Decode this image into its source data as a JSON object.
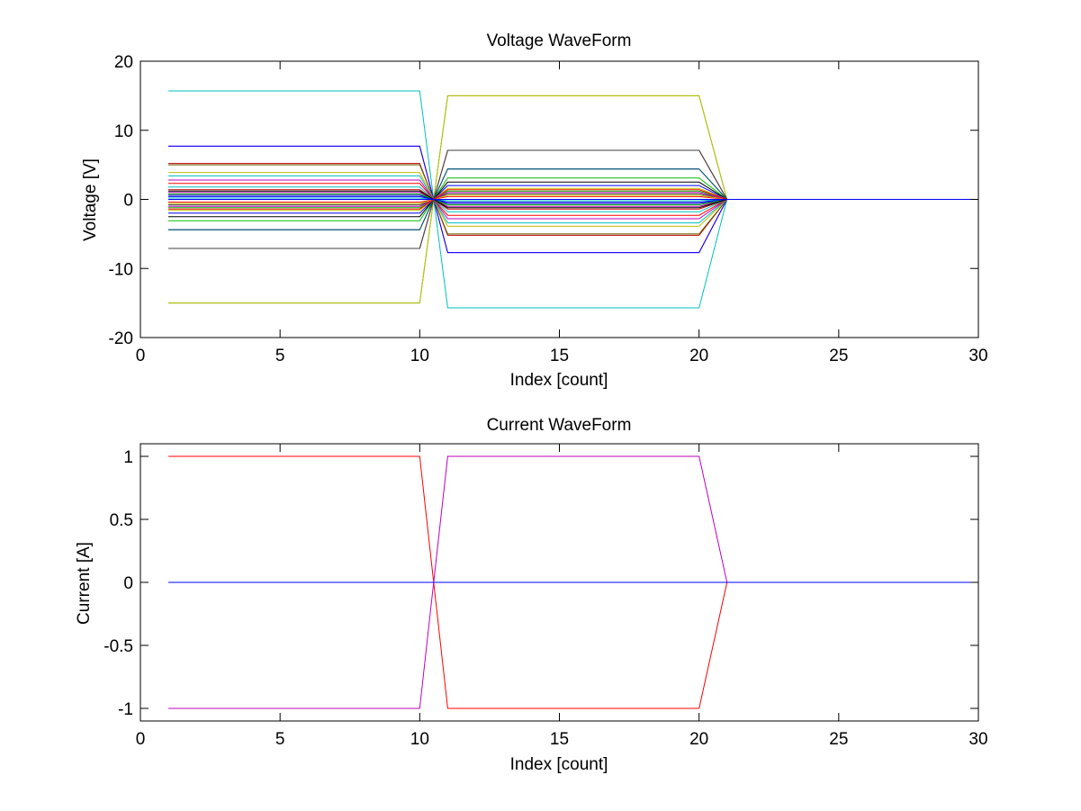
{
  "chart_data": [
    {
      "type": "line",
      "title": "Voltage WaveForm",
      "xlabel": "Index [count]",
      "ylabel": "Voltage [V]",
      "xlim": [
        0,
        30
      ],
      "ylim": [
        -20,
        20
      ],
      "xticks": [
        0,
        5,
        10,
        15,
        20,
        25,
        30
      ],
      "yticks": [
        -20,
        -10,
        0,
        10,
        20
      ],
      "xtick_labels": [
        "0",
        "5",
        "10",
        "15",
        "20",
        "25",
        "30"
      ],
      "ytick_labels": [
        "-20",
        "-10",
        "0",
        "10",
        "20"
      ],
      "grid": false,
      "legend": "none",
      "x_extent": [
        1,
        30
      ],
      "segment_1_x": [
        1,
        10
      ],
      "crossing_x": 10.5,
      "segment_2_x": [
        11,
        20
      ],
      "settle_x": 21,
      "series": [
        {
          "v1": 15.7,
          "v2": -15.7,
          "color": "#00bfbf"
        },
        {
          "v1": -15.0,
          "v2": 15.0,
          "color": "#30b030"
        },
        {
          "v1": -15.0,
          "v2": 15.0,
          "color": "#bfbf00"
        },
        {
          "v1": 7.7,
          "v2": -7.7,
          "color": "#bf00bf"
        },
        {
          "v1": 7.7,
          "v2": -7.7,
          "color": "#0000ff"
        },
        {
          "v1": -7.1,
          "v2": 7.1,
          "color": "#bf0000"
        },
        {
          "v1": -7.1,
          "v2": 7.1,
          "color": "#404040"
        },
        {
          "v1": 5.2,
          "v2": -5.2,
          "color": "#bf0000"
        },
        {
          "v1": 5.0,
          "v2": -5.0,
          "color": "#606000"
        },
        {
          "v1": -4.4,
          "v2": 4.4,
          "color": "#0000bf"
        },
        {
          "v1": -4.4,
          "v2": 4.4,
          "color": "#006060"
        },
        {
          "v1": 3.9,
          "v2": -3.9,
          "color": "#bfbf00"
        },
        {
          "v1": 3.4,
          "v2": -3.4,
          "color": "#00bfbf"
        },
        {
          "v1": -3.1,
          "v2": 3.1,
          "color": "#00bf00"
        },
        {
          "v1": 2.8,
          "v2": -2.8,
          "color": "#bf00bf"
        },
        {
          "v1": -2.5,
          "v2": 2.5,
          "color": "#000000"
        },
        {
          "v1": 2.3,
          "v2": -2.3,
          "color": "#ff0000"
        },
        {
          "v1": -2.0,
          "v2": 2.0,
          "color": "#0000ff"
        },
        {
          "v1": 1.8,
          "v2": -1.8,
          "color": "#00bfbf"
        },
        {
          "v1": -1.6,
          "v2": 1.6,
          "color": "#bfbf00"
        },
        {
          "v1": 1.4,
          "v2": -1.4,
          "color": "#bf0000"
        },
        {
          "v1": -1.2,
          "v2": 1.2,
          "color": "#00bf00"
        },
        {
          "v1": 1.0,
          "v2": -1.0,
          "color": "#bf00bf"
        },
        {
          "v1": -0.8,
          "v2": 0.8,
          "color": "#404040"
        },
        {
          "v1": 0.6,
          "v2": -0.6,
          "color": "#0000bf"
        },
        {
          "v1": -0.4,
          "v2": 0.4,
          "color": "#ff0000"
        },
        {
          "v1": 0.2,
          "v2": -0.2,
          "color": "#00bfbf"
        },
        {
          "v1": -0.6,
          "v2": 0.6,
          "color": "#bfbf00"
        },
        {
          "v1": 0.8,
          "v2": -0.8,
          "color": "#00bf00"
        },
        {
          "v1": -1.0,
          "v2": 1.0,
          "color": "#bf00bf"
        },
        {
          "v1": 1.2,
          "v2": -1.2,
          "color": "#000000"
        },
        {
          "v1": -1.4,
          "v2": 1.4,
          "color": "#ff0000"
        },
        {
          "v1": 0.4,
          "v2": -0.4,
          "color": "#0000ff"
        },
        {
          "v1": 0.0,
          "v2": 0.0,
          "color": "#0000ff"
        }
      ]
    },
    {
      "type": "line",
      "title": "Current WaveForm",
      "xlabel": "Index [count]",
      "ylabel": "Current [A]",
      "xlim": [
        0,
        30
      ],
      "ylim": [
        -1.1,
        1.1
      ],
      "xticks": [
        0,
        5,
        10,
        15,
        20,
        25,
        30
      ],
      "yticks": [
        -1,
        -0.5,
        0,
        0.5,
        1
      ],
      "xtick_labels": [
        "0",
        "5",
        "10",
        "15",
        "20",
        "25",
        "30"
      ],
      "ytick_labels": [
        "-1",
        "-0.5",
        "0",
        "0.5",
        "1"
      ],
      "grid": false,
      "legend": "none",
      "series": [
        {
          "x": [
            1,
            10,
            10.5,
            11,
            20,
            21,
            30
          ],
          "y": [
            1,
            1,
            0,
            -1,
            -1,
            0,
            0
          ],
          "color": "#ff0000"
        },
        {
          "x": [
            1,
            10,
            10.5,
            11,
            20,
            21,
            30
          ],
          "y": [
            -1,
            -1,
            0,
            1,
            1,
            0,
            0
          ],
          "color": "#bf00bf"
        },
        {
          "x": [
            1,
            30
          ],
          "y": [
            0,
            0
          ],
          "color": "#0000ff"
        }
      ]
    }
  ]
}
